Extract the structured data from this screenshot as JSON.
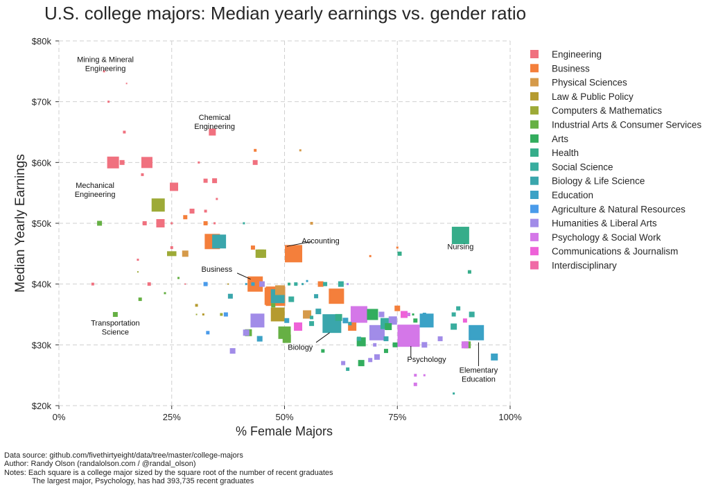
{
  "chart_data": {
    "type": "scatter",
    "title": "U.S. college majors: Median yearly earnings vs. gender ratio",
    "xlabel": "% Female Majors",
    "ylabel": "Median Yearly Earnings",
    "xlim": [
      0,
      100
    ],
    "ylim": [
      20000,
      80000
    ],
    "x_ticks": [
      0,
      25,
      50,
      75,
      100
    ],
    "x_tick_labels": [
      "0%",
      "25%",
      "50%",
      "75%",
      "100%"
    ],
    "y_ticks": [
      20000,
      30000,
      40000,
      50000,
      60000,
      70000,
      80000
    ],
    "y_tick_labels": [
      "$20k",
      "$30k",
      "$40k",
      "$50k",
      "$60k",
      "$70k",
      "$80k"
    ],
    "grid": true,
    "legend_position": "right",
    "marker": "square",
    "categories": [
      {
        "name": "Engineering",
        "color": "#f0717f"
      },
      {
        "name": "Business",
        "color": "#f47f3b"
      },
      {
        "name": "Physical Sciences",
        "color": "#d59a4a"
      },
      {
        "name": "Law & Public Policy",
        "color": "#b59b2f"
      },
      {
        "name": "Computers & Mathematics",
        "color": "#9daa37"
      },
      {
        "name": "Industrial Arts & Consumer Services",
        "color": "#66b044"
      },
      {
        "name": "Arts",
        "color": "#33ad5e"
      },
      {
        "name": "Health",
        "color": "#36ad8a"
      },
      {
        "name": "Social Science",
        "color": "#39ad9e"
      },
      {
        "name": "Biology & Life Science",
        "color": "#3aa6ac"
      },
      {
        "name": "Education",
        "color": "#3ba2c6"
      },
      {
        "name": "Agriculture & Natural Resources",
        "color": "#4a9bea"
      },
      {
        "name": "Humanities & Liberal Arts",
        "color": "#a18ce8"
      },
      {
        "name": "Psychology & Social Work",
        "color": "#d477e8"
      },
      {
        "name": "Communications & Journalism",
        "color": "#ee62d8"
      },
      {
        "name": "Interdisciplinary",
        "color": "#f06aa6"
      }
    ],
    "points": [
      {
        "x": 10,
        "y": 75000,
        "size": 3,
        "cat": 0
      },
      {
        "x": 15,
        "y": 73000,
        "size": 2,
        "cat": 0
      },
      {
        "x": 11,
        "y": 70000,
        "size": 3,
        "cat": 0
      },
      {
        "x": 14.5,
        "y": 65000,
        "size": 4,
        "cat": 0
      },
      {
        "x": 34,
        "y": 65000,
        "size": 10,
        "cat": 0
      },
      {
        "x": 43.5,
        "y": 62000,
        "size": 4,
        "cat": 1
      },
      {
        "x": 53.5,
        "y": 62000,
        "size": 3,
        "cat": 2
      },
      {
        "x": 12,
        "y": 60000,
        "size": 17,
        "cat": 0
      },
      {
        "x": 14,
        "y": 60000,
        "size": 7,
        "cat": 0
      },
      {
        "x": 19.5,
        "y": 60000,
        "size": 16,
        "cat": 0
      },
      {
        "x": 31,
        "y": 60000,
        "size": 3,
        "cat": 0
      },
      {
        "x": 43.5,
        "y": 60000,
        "size": 7,
        "cat": 0
      },
      {
        "x": 18.5,
        "y": 58000,
        "size": 4,
        "cat": 0
      },
      {
        "x": 32.5,
        "y": 57000,
        "size": 6,
        "cat": 0
      },
      {
        "x": 34.5,
        "y": 57000,
        "size": 7,
        "cat": 0
      },
      {
        "x": 25.5,
        "y": 56000,
        "size": 12,
        "cat": 0
      },
      {
        "x": 35,
        "y": 54000,
        "size": 3,
        "cat": 0
      },
      {
        "x": 22,
        "y": 53000,
        "size": 19,
        "cat": 4
      },
      {
        "x": 29.5,
        "y": 52000,
        "size": 7,
        "cat": 0
      },
      {
        "x": 32.5,
        "y": 52000,
        "size": 4,
        "cat": 0
      },
      {
        "x": 28,
        "y": 51000,
        "size": 6,
        "cat": 1
      },
      {
        "x": 9,
        "y": 50000,
        "size": 7,
        "cat": 5
      },
      {
        "x": 19,
        "y": 50000,
        "size": 6,
        "cat": 0
      },
      {
        "x": 22.5,
        "y": 50000,
        "size": 12,
        "cat": 0
      },
      {
        "x": 25,
        "y": 50000,
        "size": 3,
        "cat": 0
      },
      {
        "x": 32.5,
        "y": 50000,
        "size": 6,
        "cat": 1
      },
      {
        "x": 34.5,
        "y": 50000,
        "size": 3,
        "cat": 0
      },
      {
        "x": 41,
        "y": 50000,
        "size": 3,
        "cat": 8
      },
      {
        "x": 56,
        "y": 50000,
        "size": 4,
        "cat": 2
      },
      {
        "x": 34,
        "y": 47000,
        "size": 22,
        "cat": 1
      },
      {
        "x": 35.5,
        "y": 47000,
        "size": 20,
        "cat": 9
      },
      {
        "x": 43,
        "y": 46000,
        "size": 6,
        "cat": 1
      },
      {
        "x": 25,
        "y": 46000,
        "size": 4,
        "cat": 0
      },
      {
        "x": 24.5,
        "y": 45000,
        "size": 7,
        "cat": 4
      },
      {
        "x": 25.5,
        "y": 45000,
        "size": 7,
        "cat": 4
      },
      {
        "x": 28,
        "y": 45000,
        "size": 9,
        "cat": 2
      },
      {
        "x": 44.5,
        "y": 45000,
        "size": 12,
        "cat": 4
      },
      {
        "x": 45,
        "y": 45000,
        "size": 12,
        "cat": 4
      },
      {
        "x": 52,
        "y": 45000,
        "size": 25,
        "cat": 1
      },
      {
        "x": 69,
        "y": 44600,
        "size": 3,
        "cat": 1
      },
      {
        "x": 75,
        "y": 46000,
        "size": 3,
        "cat": 1
      },
      {
        "x": 75.5,
        "y": 45000,
        "size": 6,
        "cat": 7
      },
      {
        "x": 89,
        "y": 48000,
        "size": 25,
        "cat": 7
      },
      {
        "x": 17.5,
        "y": 44000,
        "size": 3,
        "cat": 0
      },
      {
        "x": 17.5,
        "y": 42000,
        "size": 2,
        "cat": 4
      },
      {
        "x": 26.5,
        "y": 41000,
        "size": 3,
        "cat": 5
      },
      {
        "x": 91,
        "y": 42000,
        "size": 5,
        "cat": 7
      },
      {
        "x": 7.5,
        "y": 40000,
        "size": 4,
        "cat": 0
      },
      {
        "x": 20,
        "y": 40000,
        "size": 5,
        "cat": 0
      },
      {
        "x": 28,
        "y": 40000,
        "size": 2,
        "cat": 0
      },
      {
        "x": 32.5,
        "y": 40000,
        "size": 6,
        "cat": 11
      },
      {
        "x": 37.5,
        "y": 40000,
        "size": 2,
        "cat": 3
      },
      {
        "x": 41.5,
        "y": 40000,
        "size": 3,
        "cat": 10
      },
      {
        "x": 43,
        "y": 40000,
        "size": 5,
        "cat": 10
      },
      {
        "x": 43.5,
        "y": 40000,
        "size": 22,
        "cat": 1
      },
      {
        "x": 45,
        "y": 40000,
        "size": 8,
        "cat": 12
      },
      {
        "x": 47.5,
        "y": 38000,
        "size": 25,
        "cat": 1
      },
      {
        "x": 48,
        "y": 38000,
        "size": 28,
        "cat": 1
      },
      {
        "x": 49,
        "y": 39000,
        "size": 14,
        "cat": 2
      },
      {
        "x": 48.5,
        "y": 38000,
        "size": 20,
        "cat": 9
      },
      {
        "x": 51,
        "y": 40000,
        "size": 4,
        "cat": 7
      },
      {
        "x": 52.5,
        "y": 40000,
        "size": 5,
        "cat": 8
      },
      {
        "x": 54,
        "y": 40000,
        "size": 3,
        "cat": 9
      },
      {
        "x": 55,
        "y": 40500,
        "size": 3,
        "cat": 10
      },
      {
        "x": 58,
        "y": 40000,
        "size": 8,
        "cat": 1
      },
      {
        "x": 59,
        "y": 40000,
        "size": 6,
        "cat": 8
      },
      {
        "x": 62.5,
        "y": 40000,
        "size": 8,
        "cat": 8
      },
      {
        "x": 64,
        "y": 40000,
        "size": 3,
        "cat": 12
      },
      {
        "x": 61.5,
        "y": 38000,
        "size": 22,
        "cat": 1
      },
      {
        "x": 57,
        "y": 38000,
        "size": 6,
        "cat": 9
      },
      {
        "x": 38,
        "y": 38000,
        "size": 7,
        "cat": 9
      },
      {
        "x": 51.5,
        "y": 37500,
        "size": 8,
        "cat": 8
      },
      {
        "x": 23.5,
        "y": 38500,
        "size": 3,
        "cat": 5
      },
      {
        "x": 18,
        "y": 37500,
        "size": 5,
        "cat": 5
      },
      {
        "x": 30.5,
        "y": 36500,
        "size": 4,
        "cat": 3
      },
      {
        "x": 47.5,
        "y": 36500,
        "size": 6,
        "cat": 5
      },
      {
        "x": 48.5,
        "y": 35000,
        "size": 20,
        "cat": 3
      },
      {
        "x": 55,
        "y": 35000,
        "size": 12,
        "cat": 2
      },
      {
        "x": 37,
        "y": 35000,
        "size": 6,
        "cat": 11
      },
      {
        "x": 36,
        "y": 35000,
        "size": 4,
        "cat": 4
      },
      {
        "x": 30.5,
        "y": 35000,
        "size": 2,
        "cat": 4
      },
      {
        "x": 32,
        "y": 35000,
        "size": 3,
        "cat": 3
      },
      {
        "x": 12.5,
        "y": 35000,
        "size": 7,
        "cat": 5
      },
      {
        "x": 44,
        "y": 34000,
        "size": 20,
        "cat": 12
      },
      {
        "x": 50.5,
        "y": 34000,
        "size": 7,
        "cat": 10
      },
      {
        "x": 56,
        "y": 34500,
        "size": 5,
        "cat": 8
      },
      {
        "x": 56,
        "y": 33500,
        "size": 7,
        "cat": 8
      },
      {
        "x": 57.5,
        "y": 35500,
        "size": 8,
        "cat": 9
      },
      {
        "x": 60.5,
        "y": 33500,
        "size": 27,
        "cat": 9
      },
      {
        "x": 62,
        "y": 34500,
        "size": 10,
        "cat": 7
      },
      {
        "x": 63.5,
        "y": 34000,
        "size": 8,
        "cat": 10
      },
      {
        "x": 64.5,
        "y": 33500,
        "size": 5,
        "cat": 9
      },
      {
        "x": 65,
        "y": 33000,
        "size": 12,
        "cat": 1
      },
      {
        "x": 66.5,
        "y": 35000,
        "size": 24,
        "cat": 13
      },
      {
        "x": 69.5,
        "y": 35000,
        "size": 16,
        "cat": 6
      },
      {
        "x": 71.5,
        "y": 35000,
        "size": 8,
        "cat": 12
      },
      {
        "x": 72.5,
        "y": 33500,
        "size": 16,
        "cat": 8
      },
      {
        "x": 73,
        "y": 33000,
        "size": 10,
        "cat": 6
      },
      {
        "x": 74,
        "y": 34000,
        "size": 12,
        "cat": 12
      },
      {
        "x": 70.5,
        "y": 32000,
        "size": 22,
        "cat": 12
      },
      {
        "x": 75,
        "y": 36000,
        "size": 8,
        "cat": 1
      },
      {
        "x": 76.5,
        "y": 35000,
        "size": 10,
        "cat": 14
      },
      {
        "x": 77.5,
        "y": 35000,
        "size": 5,
        "cat": 13
      },
      {
        "x": 78.5,
        "y": 35000,
        "size": 3,
        "cat": 6
      },
      {
        "x": 79,
        "y": 34000,
        "size": 6,
        "cat": 6
      },
      {
        "x": 81,
        "y": 35000,
        "size": 5,
        "cat": 10
      },
      {
        "x": 81.5,
        "y": 34000,
        "size": 20,
        "cat": 10
      },
      {
        "x": 87.5,
        "y": 35000,
        "size": 6,
        "cat": 8
      },
      {
        "x": 88.5,
        "y": 36000,
        "size": 6,
        "cat": 8
      },
      {
        "x": 90,
        "y": 34000,
        "size": 6,
        "cat": 14
      },
      {
        "x": 91.5,
        "y": 35000,
        "size": 8,
        "cat": 8
      },
      {
        "x": 87.5,
        "y": 33000,
        "size": 9,
        "cat": 8
      },
      {
        "x": 92.5,
        "y": 32000,
        "size": 22,
        "cat": 10
      },
      {
        "x": 77.5,
        "y": 31500,
        "size": 32,
        "cat": 13
      },
      {
        "x": 72.5,
        "y": 31000,
        "size": 7,
        "cat": 9
      },
      {
        "x": 74.5,
        "y": 30000,
        "size": 7,
        "cat": 6
      },
      {
        "x": 70,
        "y": 30000,
        "size": 5,
        "cat": 12
      },
      {
        "x": 67,
        "y": 30500,
        "size": 13,
        "cat": 6
      },
      {
        "x": 66.5,
        "y": 31000,
        "size": 6,
        "cat": 8
      },
      {
        "x": 84.5,
        "y": 31000,
        "size": 7,
        "cat": 12
      },
      {
        "x": 81,
        "y": 30000,
        "size": 8,
        "cat": 12
      },
      {
        "x": 90.5,
        "y": 30000,
        "size": 10,
        "cat": 5
      },
      {
        "x": 90,
        "y": 30000,
        "size": 10,
        "cat": 13
      },
      {
        "x": 96.5,
        "y": 28000,
        "size": 10,
        "cat": 10
      },
      {
        "x": 41.5,
        "y": 32000,
        "size": 9,
        "cat": 12
      },
      {
        "x": 42,
        "y": 32000,
        "size": 10,
        "cat": 5
      },
      {
        "x": 44.5,
        "y": 31000,
        "size": 8,
        "cat": 10
      },
      {
        "x": 50,
        "y": 32000,
        "size": 18,
        "cat": 5
      },
      {
        "x": 50.5,
        "y": 31000,
        "size": 12,
        "cat": 5
      },
      {
        "x": 53,
        "y": 33000,
        "size": 12,
        "cat": 14
      },
      {
        "x": 33,
        "y": 32000,
        "size": 5,
        "cat": 11
      },
      {
        "x": 38.5,
        "y": 29000,
        "size": 8,
        "cat": 12
      },
      {
        "x": 58.5,
        "y": 29000,
        "size": 5,
        "cat": 6
      },
      {
        "x": 63,
        "y": 27000,
        "size": 6,
        "cat": 12
      },
      {
        "x": 64,
        "y": 26000,
        "size": 5,
        "cat": 8
      },
      {
        "x": 67,
        "y": 27000,
        "size": 9,
        "cat": 6
      },
      {
        "x": 69,
        "y": 27500,
        "size": 6,
        "cat": 12
      },
      {
        "x": 70.5,
        "y": 28000,
        "size": 8,
        "cat": 12
      },
      {
        "x": 72.5,
        "y": 29000,
        "size": 6,
        "cat": 6
      },
      {
        "x": 79,
        "y": 25000,
        "size": 4,
        "cat": 13
      },
      {
        "x": 81,
        "y": 25000,
        "size": 3,
        "cat": 13
      },
      {
        "x": 79,
        "y": 23500,
        "size": 5,
        "cat": 13
      },
      {
        "x": 87.5,
        "y": 22000,
        "size": 3,
        "cat": 8
      }
    ],
    "annotations": [
      {
        "lines": [
          "Mining & Mineral",
          "Engineering"
        ],
        "x": 10.3,
        "y": 76500
      },
      {
        "lines": [
          "Chemical",
          "Engineering"
        ],
        "x": 34.5,
        "y": 67000
      },
      {
        "lines": [
          "Mechanical",
          "Engineering"
        ],
        "x": 8,
        "y": 55800
      },
      {
        "lines": [
          "Accounting"
        ],
        "x": 58,
        "y": 46700
      },
      {
        "lines": [
          "Nursing"
        ],
        "x": 89,
        "y": 45700
      },
      {
        "lines": [
          "Business"
        ],
        "x": 35,
        "y": 42000
      },
      {
        "lines": [
          "Transportation",
          "Science"
        ],
        "x": 12.5,
        "y": 33200
      },
      {
        "lines": [
          "Biology"
        ],
        "x": 53.5,
        "y": 29200
      },
      {
        "lines": [
          "Psychology"
        ],
        "x": 81.5,
        "y": 27200
      },
      {
        "lines": [
          "Elementary",
          "Education"
        ],
        "x": 93,
        "y": 25400
      }
    ]
  },
  "footer": {
    "source": "Data source: github.com/fivethirtyeight/data/tree/master/college-majors",
    "author": "Author: Randy Olson (randalolson.com / @randal_olson)",
    "notes": "Notes: Each square is a college major sized by the square root of the number of recent graduates",
    "notes2": "The largest major, Psychology, has had 393,735 recent graduates"
  }
}
